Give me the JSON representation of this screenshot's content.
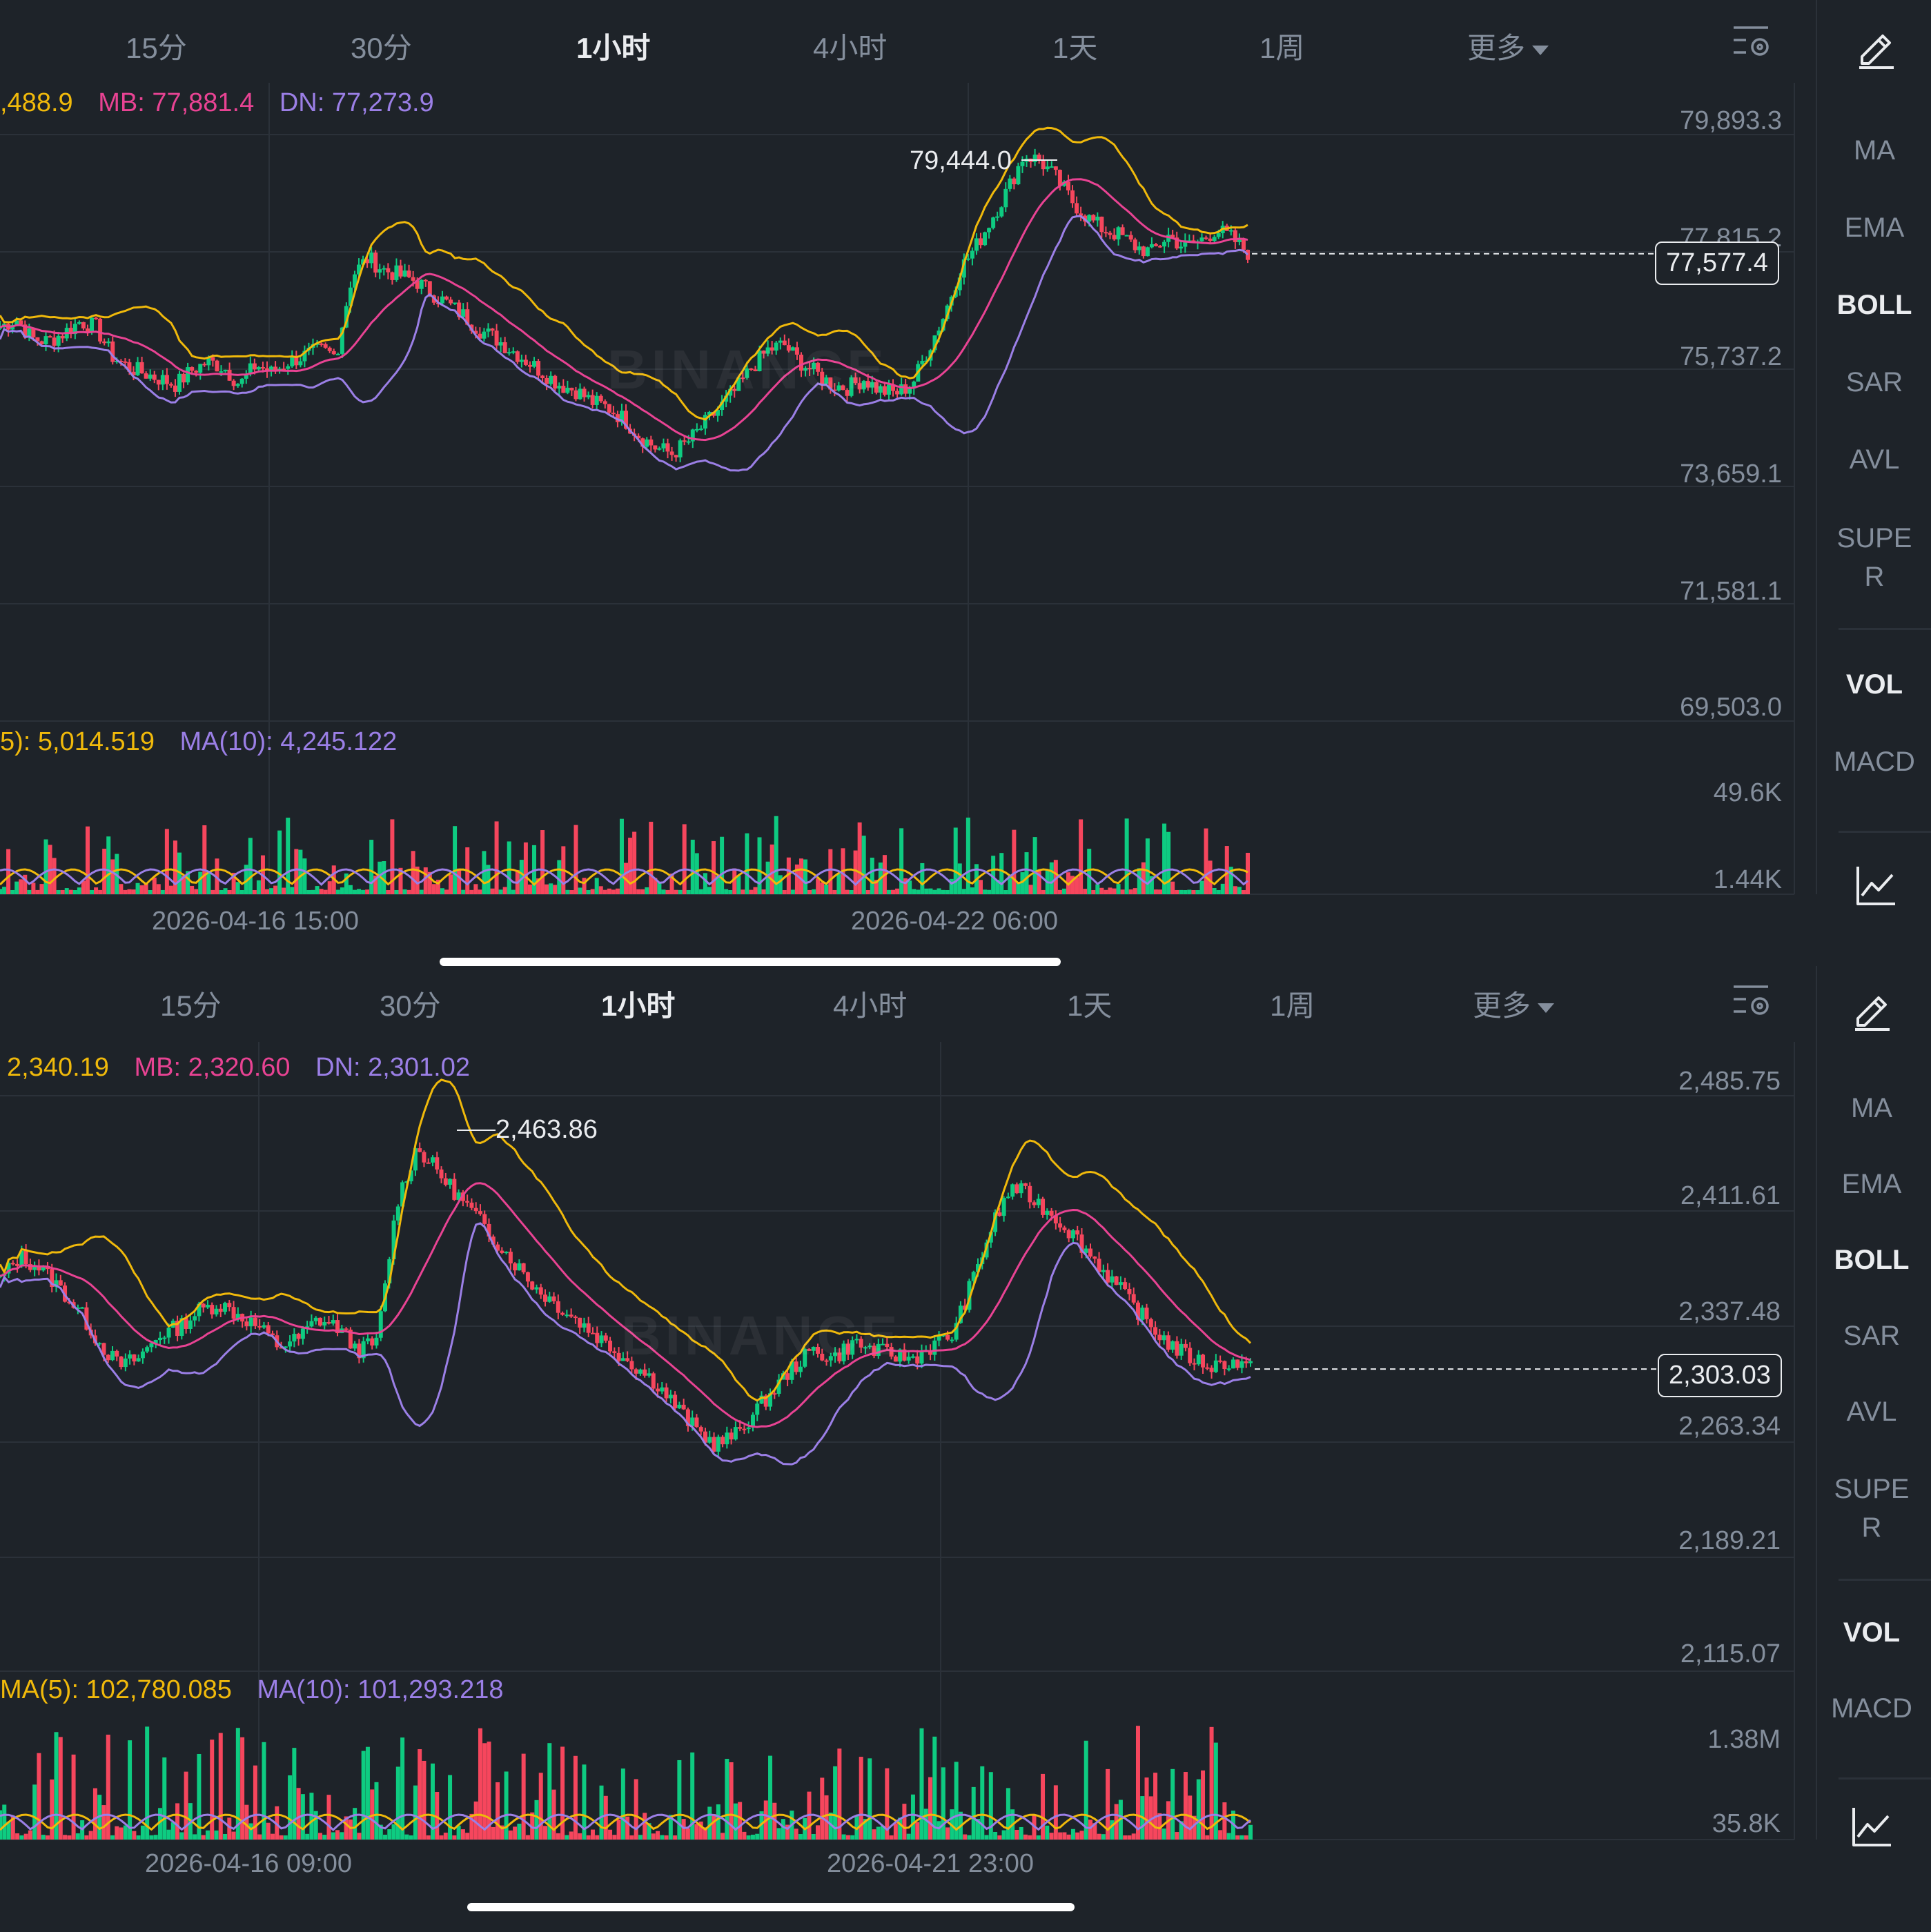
{
  "colors": {
    "up": "#0ecb81",
    "down": "#f6465d",
    "ub": "#f0b90b",
    "mb": "#e84393",
    "dn": "#9b7fe6",
    "bg": "#1e2329"
  },
  "panels": [
    {
      "tabs": [
        "15分",
        "30分",
        "1小时",
        "4小时",
        "1天",
        "1周",
        "更多"
      ],
      "active_tab": "1小时",
      "boll_legend": {
        "ub": ",488.9",
        "mb": "MB: 77,881.4",
        "dn": "DN: 77,273.9"
      },
      "vol_legend": {
        "ma5": "5): 5,014.519",
        "ma10": "MA(10): 4,245.122"
      },
      "price_axis": [
        "79,893.3",
        "77,815.2",
        "75,737.2",
        "73,659.1",
        "71,581.1",
        "69,503.0"
      ],
      "vol_axis": [
        "49.6K",
        "1.44K"
      ],
      "time_axis": [
        "2026-04-16 15:00",
        "2026-04-22 06:00"
      ],
      "current_price": "77,577.4",
      "high_label": "79,444.0",
      "side_menu": [
        "MA",
        "EMA",
        "BOLL",
        "SAR",
        "AVL",
        "SUPER",
        "VOL",
        "MACD"
      ],
      "side_active": [
        "BOLL",
        "VOL"
      ],
      "watermark": "BINANCE",
      "chart_data": {
        "type": "candlestick",
        "ylim": [
          69503.0,
          79893.3
        ],
        "high": 79444.0,
        "last": 77577.4,
        "close_path": [
          76300,
          76450,
          76100,
          76050,
          76200,
          76400,
          76300,
          75800,
          75600,
          75500,
          75400,
          75300,
          75550,
          75700,
          75600,
          75300,
          75650,
          75500,
          75700,
          75800,
          75900,
          75800,
          77200,
          77500,
          77300,
          77200,
          77100,
          76900,
          76700,
          76500,
          76250,
          76100,
          75900,
          75700,
          75500,
          75300,
          75200,
          75000,
          74900,
          74700,
          74400,
          74200,
          74100,
          74300,
          74600,
          74900,
          75200,
          75600,
          75900,
          76000,
          75700,
          75500,
          75300,
          75250,
          75400,
          75200,
          75150,
          75300,
          75900,
          76500,
          77300,
          77700,
          78200,
          78700,
          79300,
          79200,
          78900,
          78500,
          78200,
          78000,
          77900,
          77700,
          77600,
          77900,
          77700,
          77800,
          78000,
          77850,
          77600
        ]
      }
    },
    {
      "tabs": [
        "15分",
        "30分",
        "1小时",
        "4小时",
        "1天",
        "1周",
        "更多"
      ],
      "active_tab": "1小时",
      "boll_legend": {
        "ub": "2,340.19",
        "mb": "MB: 2,320.60",
        "dn": "DN: 2,301.02"
      },
      "vol_legend": {
        "ma5": "MA(5): 102,780.085",
        "ma10": "MA(10): 101,293.218"
      },
      "price_axis": [
        "2,485.75",
        "2,411.61",
        "2,337.48",
        "2,263.34",
        "2,189.21",
        "2,115.07"
      ],
      "vol_axis": [
        "1.38M",
        "35.8K"
      ],
      "time_axis": [
        "2026-04-16 09:00",
        "2026-04-21 23:00"
      ],
      "current_price": "2,303.03",
      "high_label": "2,463.86",
      "side_menu": [
        "MA",
        "EMA",
        "BOLL",
        "SAR",
        "AVL",
        "SUPER",
        "VOL",
        "MACD"
      ],
      "side_active": [
        "BOLL",
        "VOL"
      ],
      "watermark": "BINANCE",
      "chart_data": {
        "type": "candlestick",
        "ylim": [
          2115.07,
          2485.75
        ],
        "high": 2463.86,
        "last": 2303.03,
        "close_path": [
          2360,
          2375,
          2368,
          2355,
          2340,
          2320,
          2305,
          2310,
          2325,
          2330,
          2340,
          2345,
          2338,
          2330,
          2318,
          2322,
          2335,
          2330,
          2315,
          2320,
          2410,
          2445,
          2430,
          2415,
          2400,
          2385,
          2370,
          2355,
          2345,
          2335,
          2325,
          2315,
          2305,
          2295,
          2280,
          2265,
          2255,
          2260,
          2275,
          2290,
          2305,
          2315,
          2310,
          2320,
          2315,
          2312,
          2310,
          2318,
          2325,
          2360,
          2395,
          2420,
          2412,
          2402,
          2390,
          2375,
          2360,
          2345,
          2330,
          2318,
          2310,
          2305,
          2308,
          2303
        ]
      }
    }
  ]
}
